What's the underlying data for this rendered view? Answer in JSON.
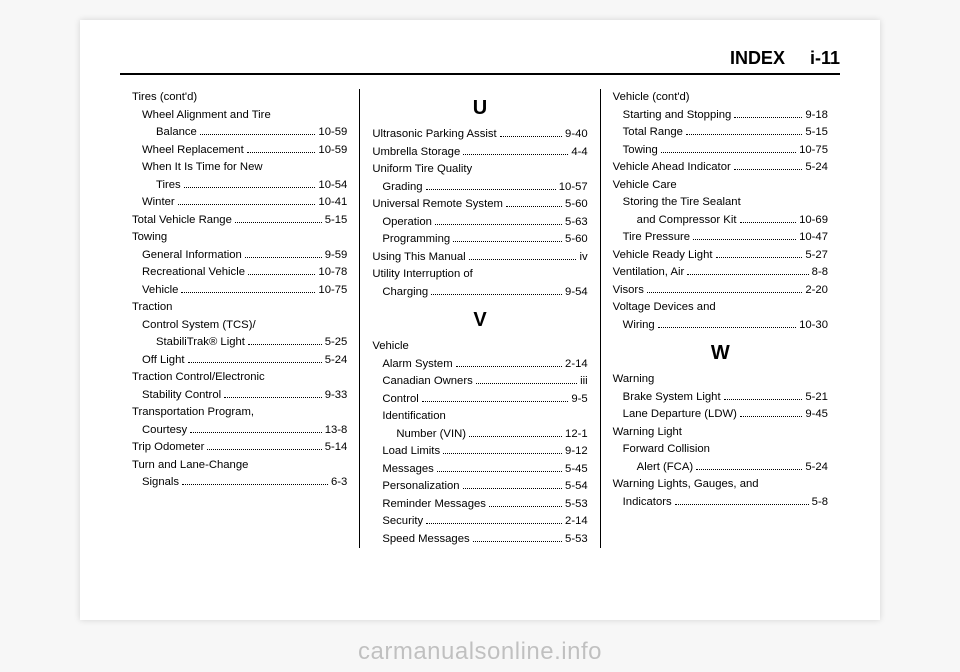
{
  "header": {
    "label": "INDEX",
    "page": "i-11"
  },
  "watermark": "carmanualsonline.info",
  "columns": [
    [
      {
        "type": "group",
        "label": "Tires (cont'd)"
      },
      {
        "type": "sub",
        "indent": 1,
        "label": "Wheel Alignment and Tire"
      },
      {
        "type": "entry",
        "indent": 2,
        "label": "Balance",
        "page": "10-59"
      },
      {
        "type": "entry",
        "indent": 1,
        "label": "Wheel Replacement",
        "page": "10-59"
      },
      {
        "type": "sub",
        "indent": 1,
        "label": "When It Is Time for New"
      },
      {
        "type": "entry",
        "indent": 2,
        "label": "Tires",
        "page": "10-54"
      },
      {
        "type": "entry",
        "indent": 1,
        "label": "Winter",
        "page": "10-41"
      },
      {
        "type": "entry",
        "indent": 0,
        "label": "Total Vehicle Range",
        "page": "5-15"
      },
      {
        "type": "group",
        "label": "Towing"
      },
      {
        "type": "entry",
        "indent": 1,
        "label": "General Information",
        "page": "9-59"
      },
      {
        "type": "entry",
        "indent": 1,
        "label": "Recreational Vehicle",
        "page": "10-78"
      },
      {
        "type": "entry",
        "indent": 1,
        "label": "Vehicle",
        "page": "10-75"
      },
      {
        "type": "group",
        "label": "Traction"
      },
      {
        "type": "sub",
        "indent": 1,
        "label": "Control System (TCS)/"
      },
      {
        "type": "entry",
        "indent": 2,
        "label": "StabiliTrak® Light",
        "page": "5-25"
      },
      {
        "type": "entry",
        "indent": 1,
        "label": "Off Light",
        "page": "5-24"
      },
      {
        "type": "group",
        "label": "Traction Control/Electronic"
      },
      {
        "type": "entry",
        "indent": 1,
        "label": "Stability Control",
        "page": "9-33"
      },
      {
        "type": "group",
        "label": "Transportation Program,"
      },
      {
        "type": "entry",
        "indent": 1,
        "label": "Courtesy",
        "page": "13-8"
      },
      {
        "type": "entry",
        "indent": 0,
        "label": "Trip Odometer",
        "page": "5-14"
      },
      {
        "type": "group",
        "label": "Turn and Lane-Change"
      },
      {
        "type": "entry",
        "indent": 1,
        "label": "Signals",
        "page": "6-3"
      }
    ],
    [
      {
        "type": "letter",
        "label": "U"
      },
      {
        "type": "entry",
        "indent": 0,
        "label": "Ultrasonic Parking Assist",
        "page": "9-40"
      },
      {
        "type": "entry",
        "indent": 0,
        "label": "Umbrella Storage",
        "page": "4-4"
      },
      {
        "type": "group",
        "label": "Uniform Tire Quality"
      },
      {
        "type": "entry",
        "indent": 1,
        "label": "Grading",
        "page": "10-57"
      },
      {
        "type": "entry",
        "indent": 0,
        "label": "Universal Remote System",
        "page": "5-60"
      },
      {
        "type": "entry",
        "indent": 1,
        "label": "Operation",
        "page": "5-63"
      },
      {
        "type": "entry",
        "indent": 1,
        "label": "Programming",
        "page": "5-60"
      },
      {
        "type": "entry",
        "indent": 0,
        "label": "Using This Manual",
        "page": "iv"
      },
      {
        "type": "group",
        "label": "Utility Interruption of"
      },
      {
        "type": "entry",
        "indent": 1,
        "label": "Charging",
        "page": "9-54"
      },
      {
        "type": "letter",
        "label": "V"
      },
      {
        "type": "group",
        "label": "Vehicle"
      },
      {
        "type": "entry",
        "indent": 1,
        "label": "Alarm System",
        "page": "2-14"
      },
      {
        "type": "entry",
        "indent": 1,
        "label": "Canadian Owners",
        "page": "iii"
      },
      {
        "type": "entry",
        "indent": 1,
        "label": "Control",
        "page": "9-5"
      },
      {
        "type": "sub",
        "indent": 1,
        "label": "Identification"
      },
      {
        "type": "entry",
        "indent": 2,
        "label": "Number (VIN)",
        "page": "12-1"
      },
      {
        "type": "entry",
        "indent": 1,
        "label": "Load Limits",
        "page": "9-12"
      },
      {
        "type": "entry",
        "indent": 1,
        "label": "Messages",
        "page": "5-45"
      },
      {
        "type": "entry",
        "indent": 1,
        "label": "Personalization",
        "page": "5-54"
      },
      {
        "type": "entry",
        "indent": 1,
        "label": "Reminder Messages",
        "page": "5-53"
      },
      {
        "type": "entry",
        "indent": 1,
        "label": "Security",
        "page": "2-14"
      },
      {
        "type": "entry",
        "indent": 1,
        "label": "Speed Messages",
        "page": "5-53"
      }
    ],
    [
      {
        "type": "group",
        "label": "Vehicle (cont'd)"
      },
      {
        "type": "entry",
        "indent": 1,
        "label": "Starting and Stopping",
        "page": "9-18"
      },
      {
        "type": "entry",
        "indent": 1,
        "label": "Total Range",
        "page": "5-15"
      },
      {
        "type": "entry",
        "indent": 1,
        "label": "Towing",
        "page": "10-75"
      },
      {
        "type": "entry",
        "indent": 0,
        "label": "Vehicle Ahead Indicator",
        "page": "5-24"
      },
      {
        "type": "group",
        "label": "Vehicle Care"
      },
      {
        "type": "sub",
        "indent": 1,
        "label": "Storing the Tire Sealant"
      },
      {
        "type": "entry",
        "indent": 2,
        "label": "and Compressor Kit",
        "page": "10-69"
      },
      {
        "type": "entry",
        "indent": 1,
        "label": "Tire Pressure",
        "page": "10-47"
      },
      {
        "type": "entry",
        "indent": 0,
        "label": "Vehicle Ready Light",
        "page": "5-27"
      },
      {
        "type": "entry",
        "indent": 0,
        "label": "Ventilation, Air",
        "page": "8-8"
      },
      {
        "type": "entry",
        "indent": 0,
        "label": "Visors",
        "page": "2-20"
      },
      {
        "type": "group",
        "label": "Voltage Devices and"
      },
      {
        "type": "entry",
        "indent": 1,
        "label": "Wiring",
        "page": "10-30"
      },
      {
        "type": "letter",
        "label": "W"
      },
      {
        "type": "group",
        "label": "Warning"
      },
      {
        "type": "entry",
        "indent": 1,
        "label": "Brake System Light",
        "page": "5-21"
      },
      {
        "type": "entry",
        "indent": 1,
        "label": "Lane Departure (LDW)",
        "page": "9-45"
      },
      {
        "type": "group",
        "label": "Warning Light"
      },
      {
        "type": "sub",
        "indent": 1,
        "label": "Forward Collision"
      },
      {
        "type": "entry",
        "indent": 2,
        "label": "Alert (FCA)",
        "page": "5-24"
      },
      {
        "type": "group",
        "label": "Warning Lights, Gauges, and"
      },
      {
        "type": "entry",
        "indent": 1,
        "label": "Indicators",
        "page": "5-8"
      }
    ]
  ]
}
